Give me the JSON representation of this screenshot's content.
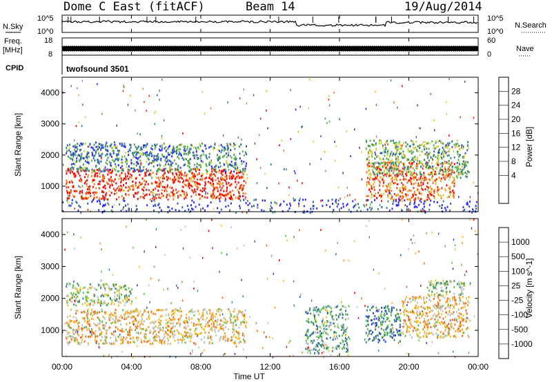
{
  "header": {
    "station": "Dome C East (fitACF)",
    "beam": "Beam 14",
    "date": "19/Aug/2014"
  },
  "top_panels": {
    "nsky_label": "N.Sky",
    "nsky_ticks": [
      "10^5",
      "10^0"
    ],
    "nsearch_label": "N.Search",
    "nsearch_ticks": [
      "10^5",
      "10^0"
    ],
    "freq_label_1": "Freq.",
    "freq_label_2": "[MHz]",
    "freq_ticks": [
      "18",
      "8"
    ],
    "nave_label": "Nave",
    "nave_ticks": [
      "60",
      "0"
    ],
    "cpid_label": "CPID",
    "cpid_value": "twofsound 3501"
  },
  "chart_data": [
    {
      "type": "heatmap",
      "panel": "power",
      "ylabel": "Slant Range [km]",
      "xlabel": "Time UT",
      "x_ticks": [
        "00:00",
        "04:00",
        "08:00",
        "12:00",
        "16:00",
        "20:00",
        "00:00"
      ],
      "xlim_hours": [
        0,
        24
      ],
      "y_ticks": [
        1000,
        2000,
        3000,
        4000
      ],
      "ylim": [
        180,
        4500
      ],
      "colorbar": {
        "label": "Power [dB]",
        "ticks": [
          "28",
          "24",
          "20",
          "16",
          "12",
          "8",
          "4"
        ],
        "colors": [
          "#2b2bff",
          "#2f5fb3",
          "#3e8f6a",
          "#5fb34a",
          "#c8d64a",
          "#f2b52a",
          "#f47a1e",
          "#e63a1a",
          "#ff0000"
        ]
      },
      "blobs": [
        {
          "t0": 0.2,
          "t1": 10.6,
          "r0": 600,
          "r1": 1600,
          "level": 0.85
        },
        {
          "t0": 0.2,
          "t1": 10.6,
          "r0": 1500,
          "r1": 2400,
          "level": 0.25
        },
        {
          "t0": 0.6,
          "t1": 3.0,
          "r0": 2000,
          "r1": 2450,
          "level": 0.1
        },
        {
          "t0": 17.5,
          "t1": 22.6,
          "r0": 550,
          "r1": 1800,
          "level": 0.75
        },
        {
          "t0": 17.5,
          "t1": 23.4,
          "r0": 1400,
          "r1": 2500,
          "level": 0.4
        },
        {
          "t0": 22.7,
          "t1": 23.5,
          "r0": 1300,
          "r1": 1800,
          "level": 0.35
        },
        {
          "t0": 0.0,
          "t1": 24.0,
          "r0": 180,
          "r1": 600,
          "level": 0.05
        }
      ]
    },
    {
      "type": "heatmap",
      "panel": "velocity",
      "ylabel": "Slant Range [km]",
      "xlabel": "Time UT",
      "x_ticks": [
        "00:00",
        "04:00",
        "08:00",
        "12:00",
        "16:00",
        "20:00",
        "00:00"
      ],
      "xlim_hours": [
        0,
        24
      ],
      "y_ticks": [
        1000,
        2000,
        3000,
        4000
      ],
      "ylim": [
        180,
        4500
      ],
      "colorbar": {
        "label": "Velocity [m s^-1]",
        "ticks": [
          "1000",
          "500",
          "100",
          "25",
          "-25",
          "-100",
          "-500",
          "-1000"
        ],
        "colors": [
          "#2b3fd6",
          "#2f6aa8",
          "#3f8f6e",
          "#5ec24a",
          "#c0c0c0",
          "#f2c02a",
          "#f59a1e",
          "#f26a1a",
          "#ff0000"
        ]
      },
      "blobs": [
        {
          "t0": 0.2,
          "t1": 10.6,
          "r0": 600,
          "r1": 1700,
          "level": 0.62
        },
        {
          "t0": 0.2,
          "t1": 4.0,
          "r0": 1800,
          "r1": 2500,
          "level": 0.45
        },
        {
          "t0": 17.5,
          "t1": 19.5,
          "r0": 650,
          "r1": 1800,
          "level": 0.22
        },
        {
          "t0": 19.5,
          "t1": 23.5,
          "r0": 800,
          "r1": 2100,
          "level": 0.65
        },
        {
          "t0": 21.0,
          "t1": 23.2,
          "r0": 2100,
          "r1": 2600,
          "level": 0.45
        },
        {
          "t0": 14.0,
          "t1": 16.5,
          "r0": 300,
          "r1": 1800,
          "level": 0.35
        }
      ]
    }
  ]
}
